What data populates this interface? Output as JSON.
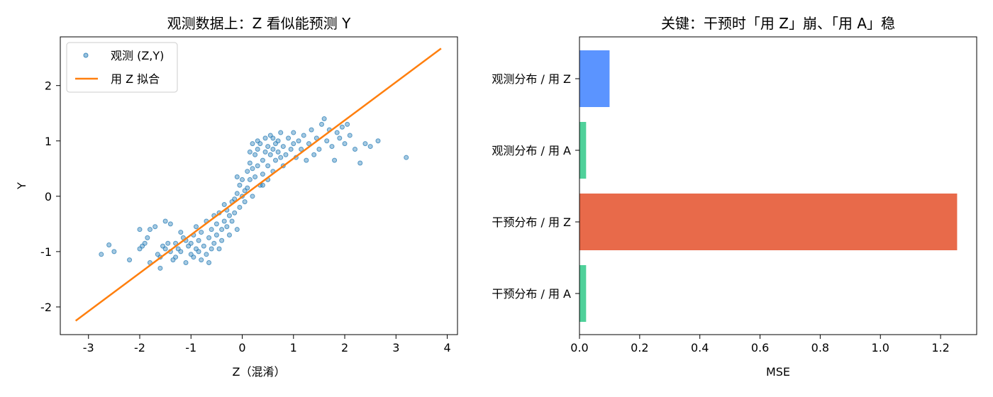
{
  "chart_data": [
    {
      "type": "scatter",
      "title": "观测数据上：Z 看似能预测 Y",
      "xlabel": "Z（混淆）",
      "ylabel": "Y",
      "xlim": [
        -3.55,
        4.2
      ],
      "ylim": [
        -2.5,
        2.88
      ],
      "xticks": [
        -3,
        -2,
        -1,
        0,
        1,
        2,
        3,
        4
      ],
      "xtick_labels": [
        "-3",
        "-2",
        "-1",
        "0",
        "1",
        "2",
        "3",
        "4"
      ],
      "yticks": [
        -2,
        -1,
        0,
        1,
        2
      ],
      "ytick_labels": [
        "-2",
        "-1",
        "0",
        "1",
        "2"
      ],
      "legend": {
        "position": "top-left",
        "entries": [
          "观测 (Z,Y)",
          "用 Z 拟合"
        ]
      },
      "series": [
        {
          "name": "观测 (Z,Y)",
          "kind": "scatter",
          "color": "#1f77b4",
          "points": [
            [
              -2.75,
              -1.05
            ],
            [
              -2.6,
              -0.88
            ],
            [
              -2.5,
              -1.0
            ],
            [
              -2.2,
              -1.15
            ],
            [
              -2.0,
              -0.6
            ],
            [
              -2.0,
              -0.95
            ],
            [
              -1.95,
              -0.9
            ],
            [
              -1.9,
              -0.85
            ],
            [
              -1.85,
              -0.75
            ],
            [
              -1.8,
              -1.2
            ],
            [
              -1.8,
              -0.6
            ],
            [
              -1.7,
              -0.55
            ],
            [
              -1.65,
              -1.05
            ],
            [
              -1.6,
              -1.1
            ],
            [
              -1.6,
              -1.3
            ],
            [
              -1.55,
              -0.9
            ],
            [
              -1.5,
              -0.45
            ],
            [
              -1.5,
              -0.95
            ],
            [
              -1.45,
              -0.85
            ],
            [
              -1.4,
              -1.0
            ],
            [
              -1.4,
              -0.5
            ],
            [
              -1.35,
              -1.15
            ],
            [
              -1.3,
              -1.1
            ],
            [
              -1.3,
              -0.85
            ],
            [
              -1.25,
              -0.95
            ],
            [
              -1.2,
              -0.65
            ],
            [
              -1.2,
              -1.0
            ],
            [
              -1.15,
              -0.75
            ],
            [
              -1.1,
              -1.2
            ],
            [
              -1.1,
              -0.8
            ],
            [
              -1.05,
              -0.9
            ],
            [
              -1.0,
              -1.05
            ],
            [
              -1.0,
              -0.85
            ],
            [
              -0.95,
              -0.7
            ],
            [
              -0.95,
              -1.1
            ],
            [
              -0.9,
              -0.95
            ],
            [
              -0.9,
              -0.55
            ],
            [
              -0.85,
              -1.0
            ],
            [
              -0.85,
              -0.8
            ],
            [
              -0.8,
              -0.65
            ],
            [
              -0.8,
              -1.15
            ],
            [
              -0.75,
              -0.9
            ],
            [
              -0.7,
              -0.45
            ],
            [
              -0.7,
              -1.05
            ],
            [
              -0.65,
              -0.75
            ],
            [
              -0.65,
              -1.2
            ],
            [
              -0.6,
              -0.6
            ],
            [
              -0.6,
              -0.95
            ],
            [
              -0.55,
              -0.85
            ],
            [
              -0.55,
              -0.35
            ],
            [
              -0.5,
              -0.7
            ],
            [
              -0.5,
              -0.5
            ],
            [
              -0.45,
              -0.95
            ],
            [
              -0.45,
              -0.3
            ],
            [
              -0.4,
              -0.6
            ],
            [
              -0.4,
              -0.8
            ],
            [
              -0.35,
              -0.45
            ],
            [
              -0.35,
              -0.15
            ],
            [
              -0.3,
              -0.55
            ],
            [
              -0.3,
              -0.25
            ],
            [
              -0.25,
              -0.7
            ],
            [
              -0.25,
              -0.35
            ],
            [
              -0.2,
              -0.1
            ],
            [
              -0.2,
              -0.45
            ],
            [
              -0.15,
              -0.05
            ],
            [
              -0.15,
              -0.3
            ],
            [
              -0.1,
              -0.6
            ],
            [
              -0.1,
              0.05
            ],
            [
              -0.05,
              0.2
            ],
            [
              -0.05,
              -0.2
            ],
            [
              0.0,
              0.0
            ],
            [
              0.0,
              0.3
            ],
            [
              0.05,
              0.1
            ],
            [
              0.05,
              -0.1
            ],
            [
              0.1,
              0.45
            ],
            [
              0.1,
              0.15
            ],
            [
              0.15,
              0.6
            ],
            [
              0.15,
              0.3
            ],
            [
              0.2,
              0.0
            ],
            [
              0.2,
              0.5
            ],
            [
              0.25,
              0.75
            ],
            [
              0.25,
              0.35
            ],
            [
              0.3,
              0.55
            ],
            [
              0.3,
              0.85
            ],
            [
              0.35,
              0.2
            ],
            [
              0.35,
              0.95
            ],
            [
              0.4,
              0.65
            ],
            [
              0.4,
              0.4
            ],
            [
              0.45,
              0.8
            ],
            [
              0.45,
              1.05
            ],
            [
              0.5,
              0.55
            ],
            [
              0.5,
              0.9
            ],
            [
              0.55,
              0.75
            ],
            [
              0.55,
              1.1
            ],
            [
              0.6,
              0.85
            ],
            [
              0.6,
              0.45
            ],
            [
              0.65,
              0.95
            ],
            [
              0.65,
              0.65
            ],
            [
              0.7,
              1.0
            ],
            [
              0.7,
              0.8
            ],
            [
              0.75,
              0.7
            ],
            [
              0.75,
              1.15
            ],
            [
              0.8,
              0.9
            ],
            [
              0.85,
              0.75
            ],
            [
              0.9,
              1.05
            ],
            [
              0.95,
              0.85
            ],
            [
              1.0,
              0.95
            ],
            [
              1.0,
              1.15
            ],
            [
              1.05,
              0.7
            ],
            [
              1.1,
              1.0
            ],
            [
              1.15,
              0.85
            ],
            [
              1.2,
              1.1
            ],
            [
              1.25,
              0.65
            ],
            [
              1.3,
              0.95
            ],
            [
              1.35,
              1.2
            ],
            [
              1.4,
              0.75
            ],
            [
              1.45,
              1.05
            ],
            [
              1.5,
              0.85
            ],
            [
              1.55,
              1.3
            ],
            [
              1.6,
              1.4
            ],
            [
              1.65,
              1.0
            ],
            [
              1.7,
              1.2
            ],
            [
              1.75,
              0.9
            ],
            [
              1.8,
              0.65
            ],
            [
              1.85,
              1.15
            ],
            [
              1.9,
              1.05
            ],
            [
              1.95,
              1.25
            ],
            [
              2.0,
              0.95
            ],
            [
              2.05,
              1.3
            ],
            [
              2.1,
              1.1
            ],
            [
              2.2,
              0.85
            ],
            [
              2.3,
              0.6
            ],
            [
              2.4,
              0.95
            ],
            [
              2.5,
              0.9
            ],
            [
              2.65,
              1.0
            ],
            [
              3.2,
              0.7
            ],
            [
              0.3,
              1.0
            ],
            [
              0.5,
              0.3
            ],
            [
              0.8,
              0.55
            ],
            [
              0.4,
              0.2
            ],
            [
              0.15,
              0.8
            ],
            [
              -0.1,
              0.35
            ],
            [
              0.6,
              1.05
            ],
            [
              0.2,
              0.95
            ]
          ]
        },
        {
          "name": "用 Z 拟合",
          "kind": "line",
          "color": "#ff7f0e",
          "points": [
            [
              -3.25,
              -2.25
            ],
            [
              3.88,
              2.67
            ]
          ]
        }
      ]
    },
    {
      "type": "bar",
      "orientation": "horizontal",
      "title": "关键：干预时「用 Z」崩、「用 A」稳",
      "xlabel": "MSE",
      "ylabel": "",
      "xlim": [
        0,
        1.32
      ],
      "xticks": [
        0.0,
        0.2,
        0.4,
        0.6,
        0.8,
        1.0,
        1.2
      ],
      "xtick_labels": [
        "0.0",
        "0.2",
        "0.4",
        "0.6",
        "0.8",
        "1.0",
        "1.2"
      ],
      "categories": [
        "观测分布 / 用 Z",
        "观测分布 / 用 A",
        "干预分布 / 用 Z",
        "干预分布 / 用 A"
      ],
      "values": [
        0.1,
        0.022,
        1.255,
        0.022
      ],
      "colors": [
        "#5b94ff",
        "#4fd19a",
        "#e86a4a",
        "#4fd19a"
      ]
    }
  ]
}
